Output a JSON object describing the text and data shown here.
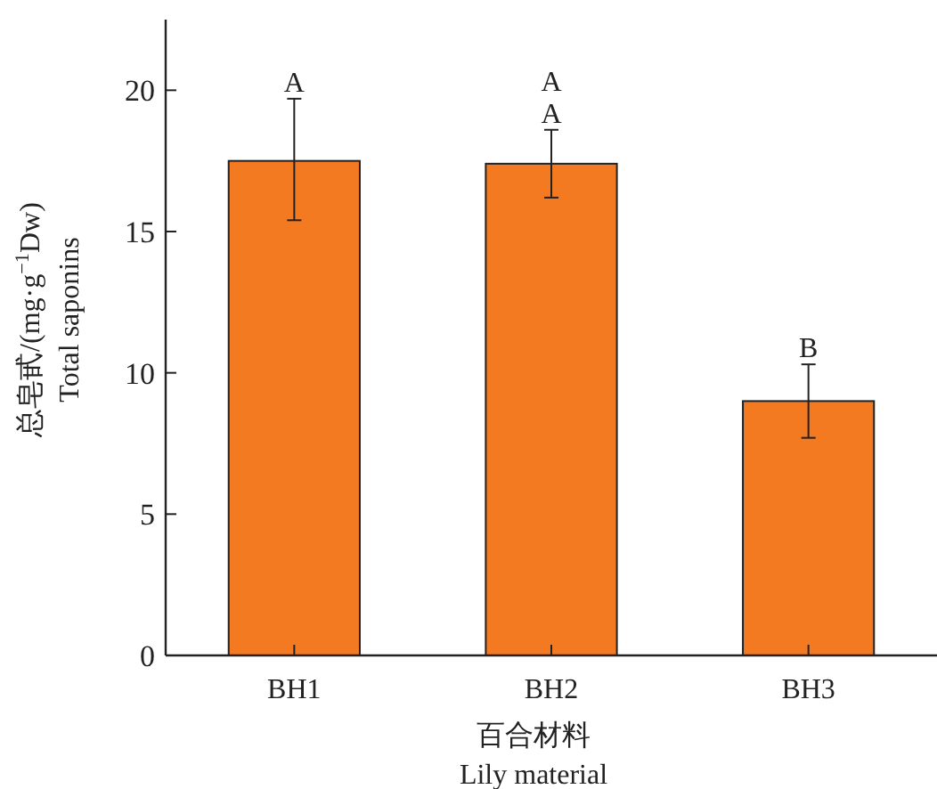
{
  "chart_data": {
    "type": "bar",
    "xlabel": "百合材料\nLily material",
    "ylabel": "总皂甙/(mg·g$^{−1}$Dw)\nTotal saponins",
    "categories": [
      "BH1",
      "BH2",
      "BH3"
    ],
    "values": [
      17.5,
      17.4,
      9.0
    ],
    "errors": [
      [
        15.4,
        19.7
      ],
      [
        16.2,
        18.6
      ],
      [
        7.7,
        10.3
      ]
    ],
    "color": "#f47a22",
    "ylim": [
      0,
      22.5
    ],
    "yticks": [
      0,
      5,
      10,
      15,
      20
    ],
    "grid": false,
    "annotations": [
      {
        "text": "A",
        "x": "BH1",
        "y": 19.7
      },
      {
        "text": "A",
        "x": "BH2",
        "y": 18.6
      },
      {
        "text": "A",
        "x": "BH2",
        "y": 18.6
      },
      {
        "text": "B",
        "x": "BH3",
        "y": 10.3
      }
    ]
  }
}
